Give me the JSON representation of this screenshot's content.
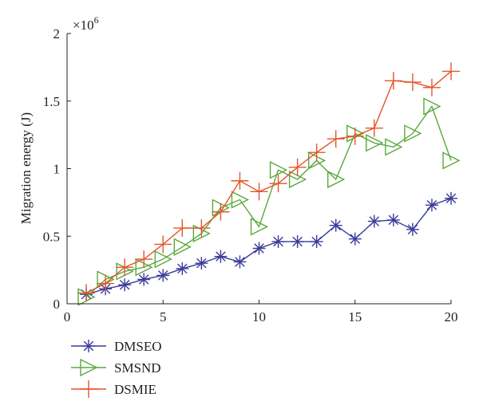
{
  "chart_data": {
    "type": "line",
    "title": "",
    "xlabel": "",
    "ylabel": "Migration energy (J)",
    "y_multiplier": "×10",
    "y_exponent": "6",
    "xlim": [
      0,
      20
    ],
    "ylim": [
      0,
      2
    ],
    "xticks": [
      0,
      5,
      10,
      15,
      20
    ],
    "yticks": [
      0,
      0.5,
      1,
      1.5,
      2
    ],
    "xtick_labels": [
      "0",
      "5",
      "10",
      "15",
      "20"
    ],
    "ytick_labels": [
      "0",
      "0.5",
      "1",
      "1.5",
      "2"
    ],
    "grid": false,
    "legend_position": "below-left",
    "x": [
      1,
      2,
      3,
      4,
      5,
      6,
      7,
      8,
      9,
      10,
      11,
      12,
      13,
      14,
      15,
      16,
      17,
      18,
      19,
      20
    ],
    "series": [
      {
        "name": "DMSEO",
        "color": "#3b3b9a",
        "marker": "asterisk",
        "values": [
          0.07,
          0.11,
          0.14,
          0.18,
          0.21,
          0.26,
          0.3,
          0.35,
          0.31,
          0.41,
          0.46,
          0.46,
          0.46,
          0.58,
          0.48,
          0.61,
          0.62,
          0.55,
          0.73,
          0.78
        ]
      },
      {
        "name": "SMSND",
        "color": "#5aa83c",
        "marker": "triangle-right",
        "values": [
          0.05,
          0.18,
          0.24,
          0.27,
          0.33,
          0.42,
          0.52,
          0.71,
          0.77,
          0.57,
          0.99,
          0.92,
          1.06,
          0.92,
          1.26,
          1.19,
          1.16,
          1.26,
          1.46,
          1.06
        ]
      },
      {
        "name": "DSMIE",
        "color": "#e4552a",
        "marker": "plus",
        "values": [
          0.08,
          0.15,
          0.27,
          0.33,
          0.44,
          0.56,
          0.56,
          0.68,
          0.91,
          0.83,
          0.89,
          1.01,
          1.12,
          1.22,
          1.24,
          1.3,
          1.65,
          1.64,
          1.6,
          1.72
        ]
      }
    ]
  }
}
